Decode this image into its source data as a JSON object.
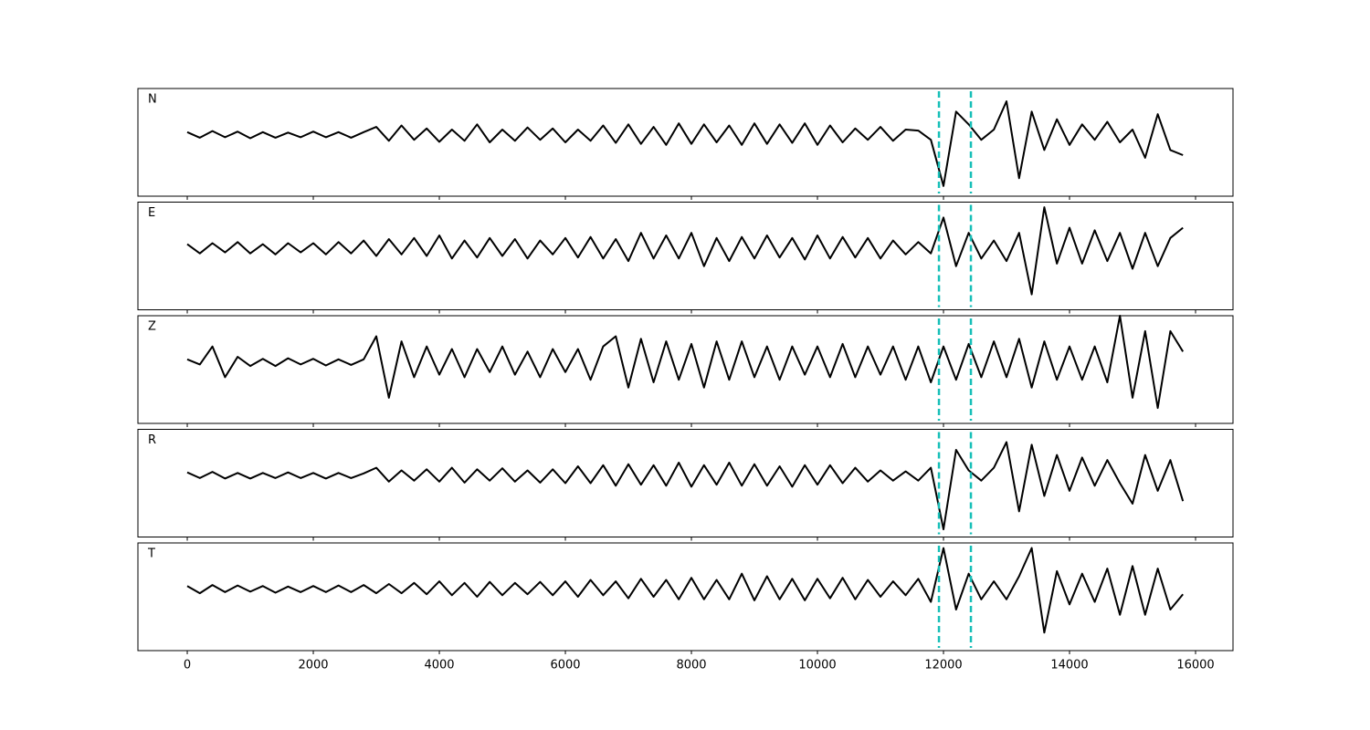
{
  "chart_data": {
    "type": "line",
    "x": [
      0,
      200,
      400,
      600,
      800,
      1000,
      1200,
      1400,
      1600,
      1800,
      2000,
      2200,
      2400,
      2600,
      2800,
      3000,
      3200,
      3400,
      3600,
      3800,
      4000,
      4200,
      4400,
      4600,
      4800,
      5000,
      5200,
      5400,
      5600,
      5800,
      6000,
      6200,
      6400,
      6600,
      6800,
      7000,
      7200,
      7400,
      7600,
      7800,
      8000,
      8200,
      8400,
      8600,
      8800,
      9000,
      9200,
      9400,
      9600,
      9800,
      10000,
      10200,
      10400,
      10600,
      10800,
      11000,
      11200,
      11400,
      11600,
      11800,
      12000,
      12200,
      12400,
      12600,
      12800,
      13000,
      13200,
      13400,
      13600,
      13800,
      14000,
      14200,
      14400,
      14600,
      14800,
      15000,
      15200,
      15400,
      15600,
      15800
    ],
    "xlim": [
      -783,
      16594
    ],
    "xticks": [
      0,
      2000,
      4000,
      6000,
      8000,
      10000,
      12000,
      14000,
      16000
    ],
    "ylim": [
      -1.2,
      0.9
    ],
    "vlines": [
      11928,
      12435
    ],
    "vline_color": "#17bfb8",
    "series": [
      {
        "name": "N",
        "color": "#000000",
        "values": [
          0.05,
          -0.06,
          0.07,
          -0.05,
          0.06,
          -0.07,
          0.05,
          -0.06,
          0.04,
          -0.05,
          0.06,
          -0.05,
          0.05,
          -0.06,
          0.05,
          0.15,
          -0.12,
          0.18,
          -0.1,
          0.12,
          -0.14,
          0.1,
          -0.12,
          0.2,
          -0.15,
          0.1,
          -0.12,
          0.14,
          -0.1,
          0.12,
          -0.15,
          0.1,
          -0.12,
          0.18,
          -0.16,
          0.2,
          -0.18,
          0.15,
          -0.2,
          0.22,
          -0.18,
          0.2,
          -0.15,
          0.18,
          -0.2,
          0.22,
          -0.18,
          0.2,
          -0.16,
          0.22,
          -0.2,
          0.18,
          -0.15,
          0.12,
          -0.1,
          0.15,
          -0.12,
          0.1,
          0.08,
          -0.1,
          -1.0,
          0.45,
          0.2,
          -0.1,
          0.1,
          0.65,
          -0.85,
          0.45,
          -0.3,
          0.3,
          -0.2,
          0.2,
          -0.1,
          0.25,
          -0.15,
          0.1,
          -0.45,
          0.4,
          -0.3,
          -0.4
        ]
      },
      {
        "name": "E",
        "color": "#000000",
        "values": [
          0.08,
          -0.1,
          0.1,
          -0.08,
          0.12,
          -0.1,
          0.08,
          -0.12,
          0.1,
          -0.08,
          0.1,
          -0.12,
          0.12,
          -0.1,
          0.15,
          -0.15,
          0.18,
          -0.12,
          0.2,
          -0.15,
          0.25,
          -0.2,
          0.15,
          -0.18,
          0.2,
          -0.15,
          0.18,
          -0.2,
          0.15,
          -0.12,
          0.2,
          -0.18,
          0.22,
          -0.2,
          0.18,
          -0.25,
          0.3,
          -0.2,
          0.25,
          -0.2,
          0.3,
          -0.35,
          0.2,
          -0.25,
          0.22,
          -0.2,
          0.25,
          -0.18,
          0.2,
          -0.22,
          0.25,
          -0.2,
          0.22,
          -0.18,
          0.2,
          -0.2,
          0.15,
          -0.12,
          0.12,
          -0.1,
          0.6,
          -0.35,
          0.3,
          -0.2,
          0.15,
          -0.25,
          0.3,
          -0.9,
          0.8,
          -0.3,
          0.4,
          -0.3,
          0.35,
          -0.25,
          0.3,
          -0.4,
          0.3,
          -0.35,
          0.2,
          0.4
        ]
      },
      {
        "name": "Z",
        "color": "#000000",
        "values": [
          0.05,
          -0.05,
          0.3,
          -0.3,
          0.1,
          -0.08,
          0.06,
          -0.08,
          0.07,
          -0.05,
          0.06,
          -0.07,
          0.05,
          -0.06,
          0.05,
          0.5,
          -0.7,
          0.4,
          -0.3,
          0.3,
          -0.25,
          0.25,
          -0.3,
          0.25,
          -0.2,
          0.3,
          -0.25,
          0.2,
          -0.3,
          0.25,
          -0.2,
          0.25,
          -0.35,
          0.3,
          0.5,
          -0.5,
          0.45,
          -0.4,
          0.4,
          -0.35,
          0.35,
          -0.5,
          0.4,
          -0.35,
          0.4,
          -0.3,
          0.3,
          -0.35,
          0.3,
          -0.25,
          0.3,
          -0.3,
          0.35,
          -0.3,
          0.3,
          -0.25,
          0.3,
          -0.35,
          0.3,
          -0.4,
          0.3,
          -0.35,
          0.35,
          -0.3,
          0.4,
          -0.3,
          0.45,
          -0.5,
          0.4,
          -0.35,
          0.3,
          -0.35,
          0.3,
          -0.4,
          0.9,
          -0.7,
          0.6,
          -0.9,
          0.6,
          0.2
        ]
      },
      {
        "name": "R",
        "color": "#000000",
        "values": [
          0.06,
          -0.05,
          0.07,
          -0.06,
          0.05,
          -0.06,
          0.05,
          -0.05,
          0.06,
          -0.05,
          0.05,
          -0.06,
          0.05,
          -0.05,
          0.04,
          0.15,
          -0.12,
          0.1,
          -0.1,
          0.12,
          -0.12,
          0.15,
          -0.14,
          0.12,
          -0.1,
          0.14,
          -0.12,
          0.1,
          -0.14,
          0.12,
          -0.15,
          0.18,
          -0.15,
          0.2,
          -0.2,
          0.22,
          -0.18,
          0.2,
          -0.2,
          0.25,
          -0.22,
          0.2,
          -0.18,
          0.25,
          -0.2,
          0.22,
          -0.2,
          0.18,
          -0.22,
          0.2,
          -0.18,
          0.2,
          -0.15,
          0.15,
          -0.12,
          0.1,
          -0.1,
          0.08,
          -0.1,
          0.15,
          -1.05,
          0.5,
          0.1,
          -0.1,
          0.15,
          0.65,
          -0.7,
          0.6,
          -0.4,
          0.4,
          -0.3,
          0.35,
          -0.2,
          0.3,
          -0.15,
          -0.55,
          0.4,
          -0.3,
          0.3,
          -0.5
        ]
      },
      {
        "name": "T",
        "color": "#000000",
        "values": [
          0.06,
          -0.08,
          0.08,
          -0.06,
          0.07,
          -0.05,
          0.06,
          -0.07,
          0.05,
          -0.06,
          0.06,
          -0.06,
          0.07,
          -0.06,
          0.08,
          -0.08,
          0.1,
          -0.08,
          0.12,
          -0.1,
          0.15,
          -0.12,
          0.12,
          -0.15,
          0.14,
          -0.12,
          0.12,
          -0.1,
          0.14,
          -0.12,
          0.15,
          -0.15,
          0.18,
          -0.12,
          0.15,
          -0.18,
          0.2,
          -0.15,
          0.18,
          -0.2,
          0.22,
          -0.2,
          0.18,
          -0.2,
          0.3,
          -0.22,
          0.25,
          -0.2,
          0.2,
          -0.22,
          0.2,
          -0.18,
          0.22,
          -0.2,
          0.18,
          -0.15,
          0.15,
          -0.12,
          0.2,
          -0.25,
          0.8,
          -0.4,
          0.3,
          -0.2,
          0.15,
          -0.2,
          0.25,
          0.8,
          -0.85,
          0.35,
          -0.3,
          0.3,
          -0.25,
          0.4,
          -0.5,
          0.45,
          -0.5,
          0.4,
          -0.4,
          -0.1
        ]
      }
    ]
  }
}
